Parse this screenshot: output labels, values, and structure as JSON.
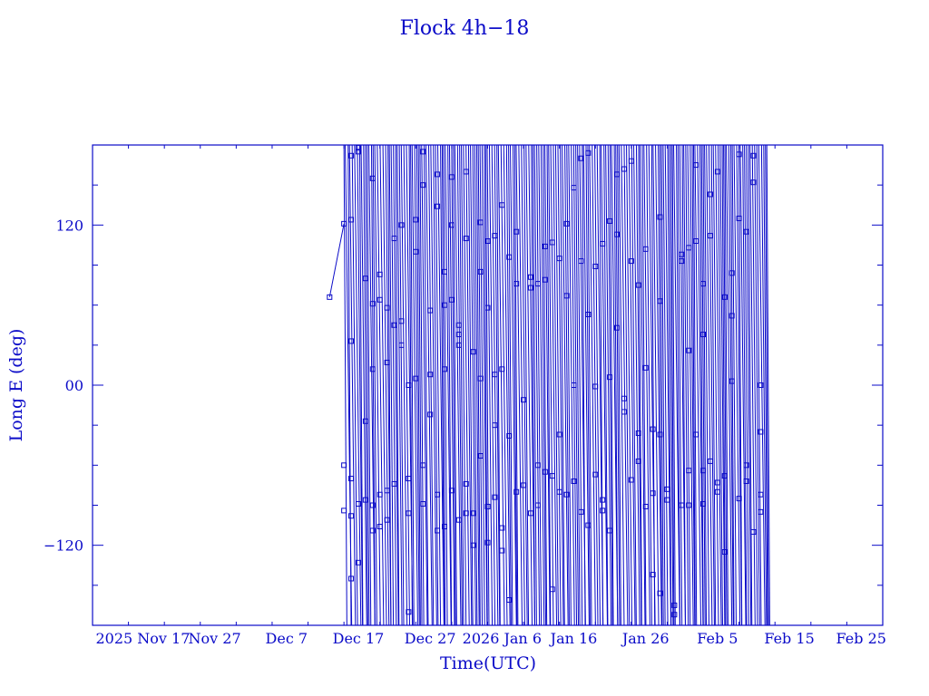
{
  "chart_data": {
    "type": "scatter",
    "title": "Flock 4h−18",
    "xlabel": "Time(UTC)",
    "ylabel": "Long E (deg)",
    "x_range": [
      "2025-11-10",
      "2026-02-28"
    ],
    "ylim": [
      -180,
      180
    ],
    "x_ticks": [
      {
        "date": "2025-11-17",
        "label": "2025 Nov 17"
      },
      {
        "date": "2025-11-27",
        "label": "Nov 27"
      },
      {
        "date": "2025-12-07",
        "label": "Dec  7"
      },
      {
        "date": "2025-12-17",
        "label": "Dec 17"
      },
      {
        "date": "2025-12-27",
        "label": "Dec 27"
      },
      {
        "date": "2026-01-06",
        "label": "2026 Jan  6"
      },
      {
        "date": "2026-01-16",
        "label": "Jan 16"
      },
      {
        "date": "2026-01-26",
        "label": "Jan 26"
      },
      {
        "date": "2026-02-05",
        "label": "Feb  5"
      },
      {
        "date": "2026-02-15",
        "label": "Feb 15"
      },
      {
        "date": "2026-02-25",
        "label": "Feb 25"
      }
    ],
    "y_ticks": [
      {
        "value": 120,
        "label": "120"
      },
      {
        "value": 0,
        "label": "00"
      },
      {
        "value": -120,
        "label": "−120"
      }
    ],
    "series": [
      {
        "marker": "square",
        "color": "#0a0ac8",
        "data_start": "2025-12-13",
        "data_end": "2026-02-11",
        "points": [
          {
            "x": "2025-12-13",
            "y": 66
          },
          {
            "x": "2025-12-15",
            "y": 121
          },
          {
            "x": "2025-12-15",
            "y": -60
          },
          {
            "x": "2025-12-15",
            "y": -94
          },
          {
            "x": "2025-12-16",
            "y": 33
          },
          {
            "x": "2025-12-16",
            "y": -145
          },
          {
            "x": "2025-12-16",
            "y": -98
          },
          {
            "x": "2025-12-16",
            "y": -70
          },
          {
            "x": "2025-12-16",
            "y": 172
          },
          {
            "x": "2025-12-16",
            "y": 124
          },
          {
            "x": "2025-12-17",
            "y": 178
          },
          {
            "x": "2025-12-17",
            "y": -133
          },
          {
            "x": "2025-12-17",
            "y": -89
          },
          {
            "x": "2025-12-17",
            "y": 175
          },
          {
            "x": "2025-12-18",
            "y": 80
          },
          {
            "x": "2025-12-18",
            "y": -27
          },
          {
            "x": "2025-12-18",
            "y": -86
          },
          {
            "x": "2025-12-19",
            "y": -109
          },
          {
            "x": "2025-12-19",
            "y": 155
          },
          {
            "x": "2025-12-19",
            "y": -90
          },
          {
            "x": "2025-12-19",
            "y": 61
          },
          {
            "x": "2025-12-19",
            "y": 12
          },
          {
            "x": "2025-12-20",
            "y": -82
          },
          {
            "x": "2025-12-20",
            "y": 83
          },
          {
            "x": "2025-12-20",
            "y": -106
          },
          {
            "x": "2025-12-20",
            "y": 64
          },
          {
            "x": "2025-12-21",
            "y": 17
          },
          {
            "x": "2025-12-21",
            "y": 58
          },
          {
            "x": "2025-12-21",
            "y": -79
          },
          {
            "x": "2025-12-21",
            "y": -101
          },
          {
            "x": "2025-12-22",
            "y": 45
          },
          {
            "x": "2025-12-22",
            "y": -74
          },
          {
            "x": "2025-12-22",
            "y": 110
          },
          {
            "x": "2025-12-23",
            "y": 120
          },
          {
            "x": "2025-12-23",
            "y": 30
          },
          {
            "x": "2025-12-23",
            "y": 48
          },
          {
            "x": "2025-12-24",
            "y": 0
          },
          {
            "x": "2025-12-24",
            "y": -70
          },
          {
            "x": "2025-12-24",
            "y": -96
          },
          {
            "x": "2025-12-24",
            "y": -170
          },
          {
            "x": "2025-12-25",
            "y": 124
          },
          {
            "x": "2025-12-25",
            "y": 100
          },
          {
            "x": "2025-12-25",
            "y": 5
          },
          {
            "x": "2025-12-26",
            "y": -60
          },
          {
            "x": "2025-12-26",
            "y": -89
          },
          {
            "x": "2025-12-26",
            "y": 175
          },
          {
            "x": "2025-12-26",
            "y": 150
          },
          {
            "x": "2025-12-27",
            "y": 56
          },
          {
            "x": "2025-12-27",
            "y": -22
          },
          {
            "x": "2025-12-27",
            "y": 8
          },
          {
            "x": "2025-12-28",
            "y": -82
          },
          {
            "x": "2025-12-28",
            "y": -109
          },
          {
            "x": "2025-12-28",
            "y": 134
          },
          {
            "x": "2025-12-28",
            "y": 158
          },
          {
            "x": "2025-12-29",
            "y": 12
          },
          {
            "x": "2025-12-29",
            "y": 60
          },
          {
            "x": "2025-12-29",
            "y": 85
          },
          {
            "x": "2025-12-29",
            "y": -106
          },
          {
            "x": "2025-12-30",
            "y": 120
          },
          {
            "x": "2025-12-30",
            "y": 156
          },
          {
            "x": "2025-12-30",
            "y": 64
          },
          {
            "x": "2025-12-30",
            "y": -79
          },
          {
            "x": "2025-12-31",
            "y": -101
          },
          {
            "x": "2025-12-31",
            "y": 45
          },
          {
            "x": "2025-12-31",
            "y": 30
          },
          {
            "x": "2025-12-31",
            "y": 38
          },
          {
            "x": "2026-01-01",
            "y": 110
          },
          {
            "x": "2026-01-01",
            "y": -74
          },
          {
            "x": "2026-01-01",
            "y": -96
          },
          {
            "x": "2026-01-01",
            "y": 160
          },
          {
            "x": "2026-01-02",
            "y": 25
          },
          {
            "x": "2026-01-02",
            "y": -96
          },
          {
            "x": "2026-01-02",
            "y": -120
          },
          {
            "x": "2026-01-03",
            "y": 85
          },
          {
            "x": "2026-01-03",
            "y": 122
          },
          {
            "x": "2026-01-03",
            "y": -53
          },
          {
            "x": "2026-01-03",
            "y": 5
          },
          {
            "x": "2026-01-04",
            "y": -118
          },
          {
            "x": "2026-01-04",
            "y": -91
          },
          {
            "x": "2026-01-04",
            "y": 108
          },
          {
            "x": "2026-01-04",
            "y": 58
          },
          {
            "x": "2026-01-05",
            "y": 8
          },
          {
            "x": "2026-01-05",
            "y": -30
          },
          {
            "x": "2026-01-05",
            "y": 112
          },
          {
            "x": "2026-01-05",
            "y": -84
          },
          {
            "x": "2026-01-06",
            "y": -107
          },
          {
            "x": "2026-01-06",
            "y": 12
          },
          {
            "x": "2026-01-06",
            "y": 135
          },
          {
            "x": "2026-01-06",
            "y": -124
          },
          {
            "x": "2026-01-07",
            "y": -38
          },
          {
            "x": "2026-01-07",
            "y": 96
          },
          {
            "x": "2026-01-07",
            "y": -161
          },
          {
            "x": "2026-01-08",
            "y": 76
          },
          {
            "x": "2026-01-08",
            "y": -80
          },
          {
            "x": "2026-01-08",
            "y": 115
          },
          {
            "x": "2026-01-09",
            "y": -11
          },
          {
            "x": "2026-01-09",
            "y": -75
          },
          {
            "x": "2026-01-10",
            "y": 73
          },
          {
            "x": "2026-01-10",
            "y": 81
          },
          {
            "x": "2026-01-10",
            "y": -96
          },
          {
            "x": "2026-01-11",
            "y": 76
          },
          {
            "x": "2026-01-11",
            "y": -60
          },
          {
            "x": "2026-01-11",
            "y": -90
          },
          {
            "x": "2026-01-12",
            "y": 104
          },
          {
            "x": "2026-01-12",
            "y": -65
          },
          {
            "x": "2026-01-12",
            "y": 79
          },
          {
            "x": "2026-01-13",
            "y": -68
          },
          {
            "x": "2026-01-13",
            "y": 107
          },
          {
            "x": "2026-01-13",
            "y": -153
          },
          {
            "x": "2026-01-14",
            "y": -37
          },
          {
            "x": "2026-01-14",
            "y": 95
          },
          {
            "x": "2026-01-14",
            "y": -80
          },
          {
            "x": "2026-01-15",
            "y": 121
          },
          {
            "x": "2026-01-15",
            "y": -82
          },
          {
            "x": "2026-01-15",
            "y": 67
          },
          {
            "x": "2026-01-16",
            "y": -72
          },
          {
            "x": "2026-01-16",
            "y": 0
          },
          {
            "x": "2026-01-16",
            "y": 148
          },
          {
            "x": "2026-01-17",
            "y": 93
          },
          {
            "x": "2026-01-17",
            "y": 170
          },
          {
            "x": "2026-01-17",
            "y": -95
          },
          {
            "x": "2026-01-18",
            "y": 53
          },
          {
            "x": "2026-01-18",
            "y": -105
          },
          {
            "x": "2026-01-18",
            "y": 174
          },
          {
            "x": "2026-01-19",
            "y": -1
          },
          {
            "x": "2026-01-19",
            "y": -67
          },
          {
            "x": "2026-01-19",
            "y": 89
          },
          {
            "x": "2026-01-20",
            "y": 106
          },
          {
            "x": "2026-01-20",
            "y": -86
          },
          {
            "x": "2026-01-20",
            "y": -94
          },
          {
            "x": "2026-01-21",
            "y": -109
          },
          {
            "x": "2026-01-21",
            "y": 6
          },
          {
            "x": "2026-01-21",
            "y": 123
          },
          {
            "x": "2026-01-22",
            "y": 158
          },
          {
            "x": "2026-01-22",
            "y": 43
          },
          {
            "x": "2026-01-22",
            "y": 113
          },
          {
            "x": "2026-01-23",
            "y": -10
          },
          {
            "x": "2026-01-23",
            "y": 162
          },
          {
            "x": "2026-01-23",
            "y": -20
          },
          {
            "x": "2026-01-24",
            "y": 93
          },
          {
            "x": "2026-01-24",
            "y": -71
          },
          {
            "x": "2026-01-24",
            "y": 168
          },
          {
            "x": "2026-01-25",
            "y": -36
          },
          {
            "x": "2026-01-25",
            "y": 75
          },
          {
            "x": "2026-01-25",
            "y": -57
          },
          {
            "x": "2026-01-26",
            "y": -91
          },
          {
            "x": "2026-01-26",
            "y": 102
          },
          {
            "x": "2026-01-26",
            "y": 13
          },
          {
            "x": "2026-01-27",
            "y": -33
          },
          {
            "x": "2026-01-27",
            "y": -142
          },
          {
            "x": "2026-01-27",
            "y": -81
          },
          {
            "x": "2026-01-28",
            "y": -37
          },
          {
            "x": "2026-01-28",
            "y": -156
          },
          {
            "x": "2026-01-28",
            "y": 126
          },
          {
            "x": "2026-01-28",
            "y": 63
          },
          {
            "x": "2026-01-29",
            "y": -86
          },
          {
            "x": "2026-01-29",
            "y": -78
          },
          {
            "x": "2026-01-30",
            "y": -165
          },
          {
            "x": "2026-01-30",
            "y": -172
          },
          {
            "x": "2026-01-31",
            "y": -90
          },
          {
            "x": "2026-01-31",
            "y": 93
          },
          {
            "x": "2026-01-31",
            "y": 98
          },
          {
            "x": "2026-02-01",
            "y": -90
          },
          {
            "x": "2026-02-01",
            "y": 26
          },
          {
            "x": "2026-02-01",
            "y": 103
          },
          {
            "x": "2026-02-01",
            "y": -64
          },
          {
            "x": "2026-02-02",
            "y": -37
          },
          {
            "x": "2026-02-02",
            "y": 108
          },
          {
            "x": "2026-02-02",
            "y": 165
          },
          {
            "x": "2026-02-03",
            "y": -89
          },
          {
            "x": "2026-02-03",
            "y": -64
          },
          {
            "x": "2026-02-03",
            "y": 38
          },
          {
            "x": "2026-02-03",
            "y": 76
          },
          {
            "x": "2026-02-04",
            "y": 143
          },
          {
            "x": "2026-02-04",
            "y": -57
          },
          {
            "x": "2026-02-04",
            "y": 112
          },
          {
            "x": "2026-02-05",
            "y": -80
          },
          {
            "x": "2026-02-05",
            "y": 160
          },
          {
            "x": "2026-02-05",
            "y": -73
          },
          {
            "x": "2026-02-06",
            "y": -125
          },
          {
            "x": "2026-02-06",
            "y": 66
          },
          {
            "x": "2026-02-06",
            "y": -68
          },
          {
            "x": "2026-02-07",
            "y": 84
          },
          {
            "x": "2026-02-07",
            "y": 3
          },
          {
            "x": "2026-02-07",
            "y": 52
          },
          {
            "x": "2026-02-08",
            "y": -85
          },
          {
            "x": "2026-02-08",
            "y": 125
          },
          {
            "x": "2026-02-08",
            "y": 173
          },
          {
            "x": "2026-02-09",
            "y": -60
          },
          {
            "x": "2026-02-09",
            "y": -72
          },
          {
            "x": "2026-02-09",
            "y": 115
          },
          {
            "x": "2026-02-10",
            "y": 172
          },
          {
            "x": "2026-02-10",
            "y": -110
          },
          {
            "x": "2026-02-10",
            "y": 152
          },
          {
            "x": "2026-02-11",
            "y": -95
          },
          {
            "x": "2026-02-11",
            "y": -35
          },
          {
            "x": "2026-02-11",
            "y": -82
          },
          {
            "x": "2026-02-11",
            "y": 0
          }
        ]
      }
    ]
  }
}
